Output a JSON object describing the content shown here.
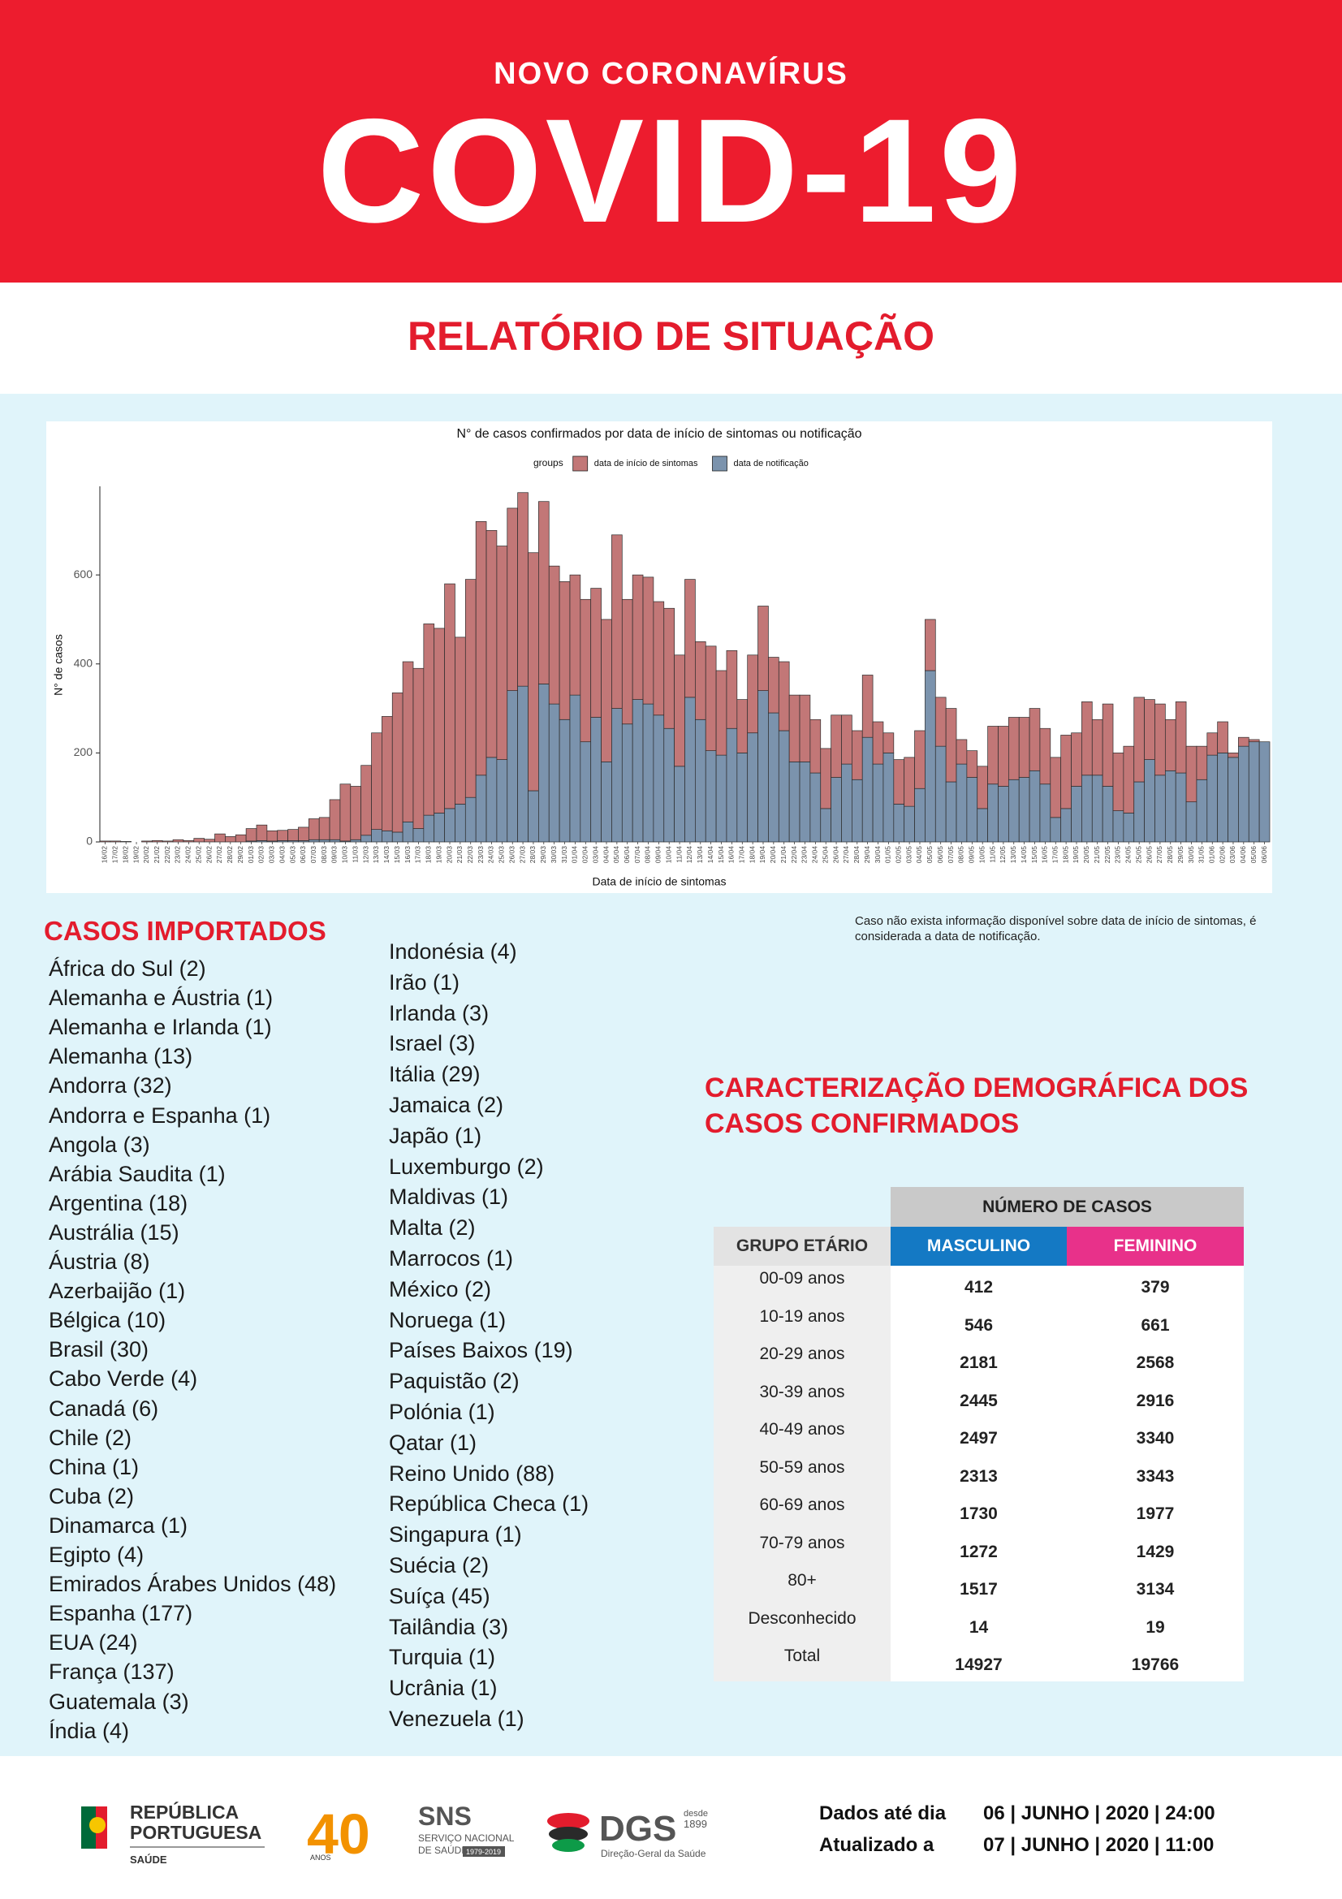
{
  "header": {
    "kicker": "NOVO CORONAVÍRUS",
    "title": "COVID-19",
    "subtitle": "RELATÓRIO DE SITUAÇÃO"
  },
  "chart_data": {
    "type": "bar",
    "stacked": true,
    "title": "N° de casos confirmados por data de início de sintomas ou notificação",
    "legend_title": "groups",
    "legend_position": "top",
    "x_label": "Data de início de sintomas",
    "y_label": "N° de casos",
    "categories": [
      "16/02",
      "17/02",
      "18/02",
      "19/02",
      "20/02",
      "21/02",
      "22/02",
      "23/02",
      "24/02",
      "25/02",
      "26/02",
      "27/02",
      "28/02",
      "29/02",
      "01/03",
      "02/03",
      "03/03",
      "04/03",
      "05/03",
      "06/03",
      "07/03",
      "08/03",
      "09/03",
      "10/03",
      "11/03",
      "12/03",
      "13/03",
      "14/03",
      "15/03",
      "16/03",
      "17/03",
      "18/03",
      "19/03",
      "20/03",
      "21/03",
      "22/03",
      "23/03",
      "24/03",
      "25/03",
      "26/03",
      "27/03",
      "28/03",
      "29/03",
      "30/03",
      "31/03",
      "01/04",
      "02/04",
      "03/04",
      "04/04",
      "05/04",
      "06/04",
      "07/04",
      "08/04",
      "09/04",
      "10/04",
      "11/04",
      "12/04",
      "13/04",
      "14/04",
      "15/04",
      "16/04",
      "17/04",
      "18/04",
      "19/04",
      "20/04",
      "21/04",
      "22/04",
      "23/04",
      "24/04",
      "25/04",
      "26/04",
      "27/04",
      "28/04",
      "29/04",
      "30/04",
      "01/05",
      "02/05",
      "03/05",
      "04/05",
      "05/05",
      "06/05",
      "07/05",
      "08/05",
      "09/05",
      "10/05",
      "11/05",
      "12/05",
      "13/05",
      "14/05",
      "15/05",
      "16/05",
      "17/05",
      "18/05",
      "19/05",
      "20/05",
      "21/05",
      "22/05",
      "23/05",
      "24/05",
      "25/05",
      "26/05",
      "27/05",
      "28/05",
      "29/05",
      "30/05",
      "31/05",
      "01/06",
      "02/06",
      "03/06",
      "04/06",
      "05/06",
      "06/06"
    ],
    "series": [
      {
        "name": "data de início de sintomas",
        "color": "#c27777",
        "values": [
          2,
          2,
          1,
          0,
          2,
          3,
          2,
          5,
          3,
          8,
          6,
          18,
          12,
          16,
          28,
          35,
          23,
          23,
          25,
          30,
          47,
          50,
          90,
          128,
          120,
          157,
          217,
          257,
          313,
          360,
          360,
          430,
          415,
          505,
          375,
          490,
          570,
          510,
          480,
          410,
          435,
          535,
          410,
          310,
          310,
          270,
          320,
          290,
          320,
          390,
          280,
          280,
          285,
          255,
          270,
          250,
          265,
          175,
          235,
          190,
          175,
          120,
          175,
          190,
          125,
          155,
          150,
          150,
          120,
          135,
          140,
          110,
          110,
          140,
          95,
          45,
          100,
          110,
          130,
          115,
          110,
          165,
          55,
          60,
          95,
          130,
          135,
          140,
          135,
          140,
          125,
          135,
          165,
          120,
          165,
          125,
          185,
          130,
          150,
          190,
          135,
          160,
          115,
          160,
          125,
          75,
          50,
          70,
          10,
          20,
          5,
          0
        ]
      },
      {
        "name": "data de notificação",
        "color": "#7b93ad",
        "values": [
          0,
          0,
          0,
          0,
          0,
          0,
          0,
          0,
          0,
          0,
          0,
          0,
          0,
          0,
          2,
          3,
          2,
          3,
          3,
          3,
          5,
          5,
          5,
          2,
          5,
          15,
          28,
          25,
          22,
          45,
          30,
          60,
          65,
          75,
          85,
          100,
          150,
          190,
          185,
          340,
          350,
          115,
          355,
          310,
          275,
          330,
          225,
          280,
          180,
          300,
          265,
          320,
          310,
          285,
          255,
          170,
          325,
          275,
          205,
          195,
          255,
          200,
          245,
          340,
          290,
          250,
          180,
          180,
          155,
          75,
          145,
          175,
          140,
          235,
          175,
          200,
          85,
          80,
          120,
          385,
          215,
          135,
          175,
          145,
          75,
          130,
          125,
          140,
          145,
          160,
          130,
          55,
          75,
          125,
          150,
          150,
          125,
          70,
          65,
          135,
          185,
          150,
          160,
          155,
          90,
          140,
          195,
          200,
          190,
          215,
          225,
          225
        ]
      }
    ],
    "ylim": [
      0,
      790
    ],
    "yticks": [
      0,
      200,
      400,
      600
    ],
    "grid": false
  },
  "chart_note": "Caso não exista informação disponível sobre data de início de sintomas, é considerada a data de notificação.",
  "imported": {
    "title": "CASOS IMPORTADOS",
    "column_1": [
      "África do Sul (2)",
      "Alemanha e Áustria (1)",
      "Alemanha e Irlanda (1)",
      "Alemanha (13)",
      "Andorra (32)",
      "Andorra e Espanha (1)",
      "Angola (3)",
      "Arábia Saudita (1)",
      "Argentina (18)",
      "Austrália (15)",
      "Áustria (8)",
      "Azerbaijão (1)",
      "Bélgica (10)",
      "Brasil (30)",
      "Cabo Verde (4)",
      "Canadá (6)",
      "Chile (2)",
      "China (1)",
      "Cuba (2)",
      "Dinamarca (1)",
      "Egipto (4)",
      "Emirados Árabes Unidos (48)",
      "Espanha (177)",
      "EUA (24)",
      "França (137)",
      "Guatemala (3)",
      "Índia (4)"
    ],
    "column_2": [
      "Indonésia (4)",
      "Irão (1)",
      "Irlanda (3)",
      "Israel (3)",
      "Itália (29)",
      "Jamaica (2)",
      "Japão (1)",
      "Luxemburgo (2)",
      "Maldivas (1)",
      "Malta (2)",
      "Marrocos (1)",
      "México (2)",
      "Noruega (1)",
      "Países Baixos (19)",
      "Paquistão (2)",
      "Polónia (1)",
      "Qatar (1)",
      "Reino Unido (88)",
      "República Checa (1)",
      "Singapura (1)",
      "Suécia (2)",
      "Suíça (45)",
      "Tailândia (3)",
      "Turquia (1)",
      "Ucrânia (1)",
      "Venezuela (1)"
    ]
  },
  "demographics": {
    "title_lines": [
      "CARACTERIZAÇÃO DEMOGRÁFICA DOS",
      "CASOS CONFIRMADOS"
    ],
    "group_header": "NÚMERO DE CASOS",
    "columns": [
      "GRUPO ETÁRIO",
      "MASCULINO",
      "FEMININO"
    ],
    "rows": [
      [
        "00-09 anos",
        412,
        379
      ],
      [
        "10-19 anos",
        546,
        661
      ],
      [
        "20-29 anos",
        2181,
        2568
      ],
      [
        "30-39 anos",
        2445,
        2916
      ],
      [
        "40-49 anos",
        2497,
        3340
      ],
      [
        "50-59 anos",
        2313,
        3343
      ],
      [
        "60-69 anos",
        1730,
        1977
      ],
      [
        "70-79 anos",
        1272,
        1429
      ],
      [
        "80+",
        1517,
        3134
      ],
      [
        "Desconhecido",
        14,
        19
      ],
      [
        "Total",
        14927,
        19766
      ]
    ]
  },
  "footer": {
    "logos": {
      "republica": [
        "REPÚBLICA",
        "PORTUGUESA",
        "SAÚDE"
      ],
      "anniversary": [
        "40",
        "ANOS"
      ],
      "sns": [
        "SNS",
        "SERVIÇO NACIONAL",
        "DE SAÚDE",
        "1979-2019"
      ],
      "dgs": [
        "DGS",
        "desde",
        "1899",
        "Direção-Geral da Saúde"
      ]
    },
    "rows": [
      {
        "label": "Dados até dia",
        "value": "06 | JUNHO | 2020 | 24:00"
      },
      {
        "label": "Atualizado a",
        "value": "07 | JUNHO | 2020 | 11:00"
      }
    ]
  }
}
